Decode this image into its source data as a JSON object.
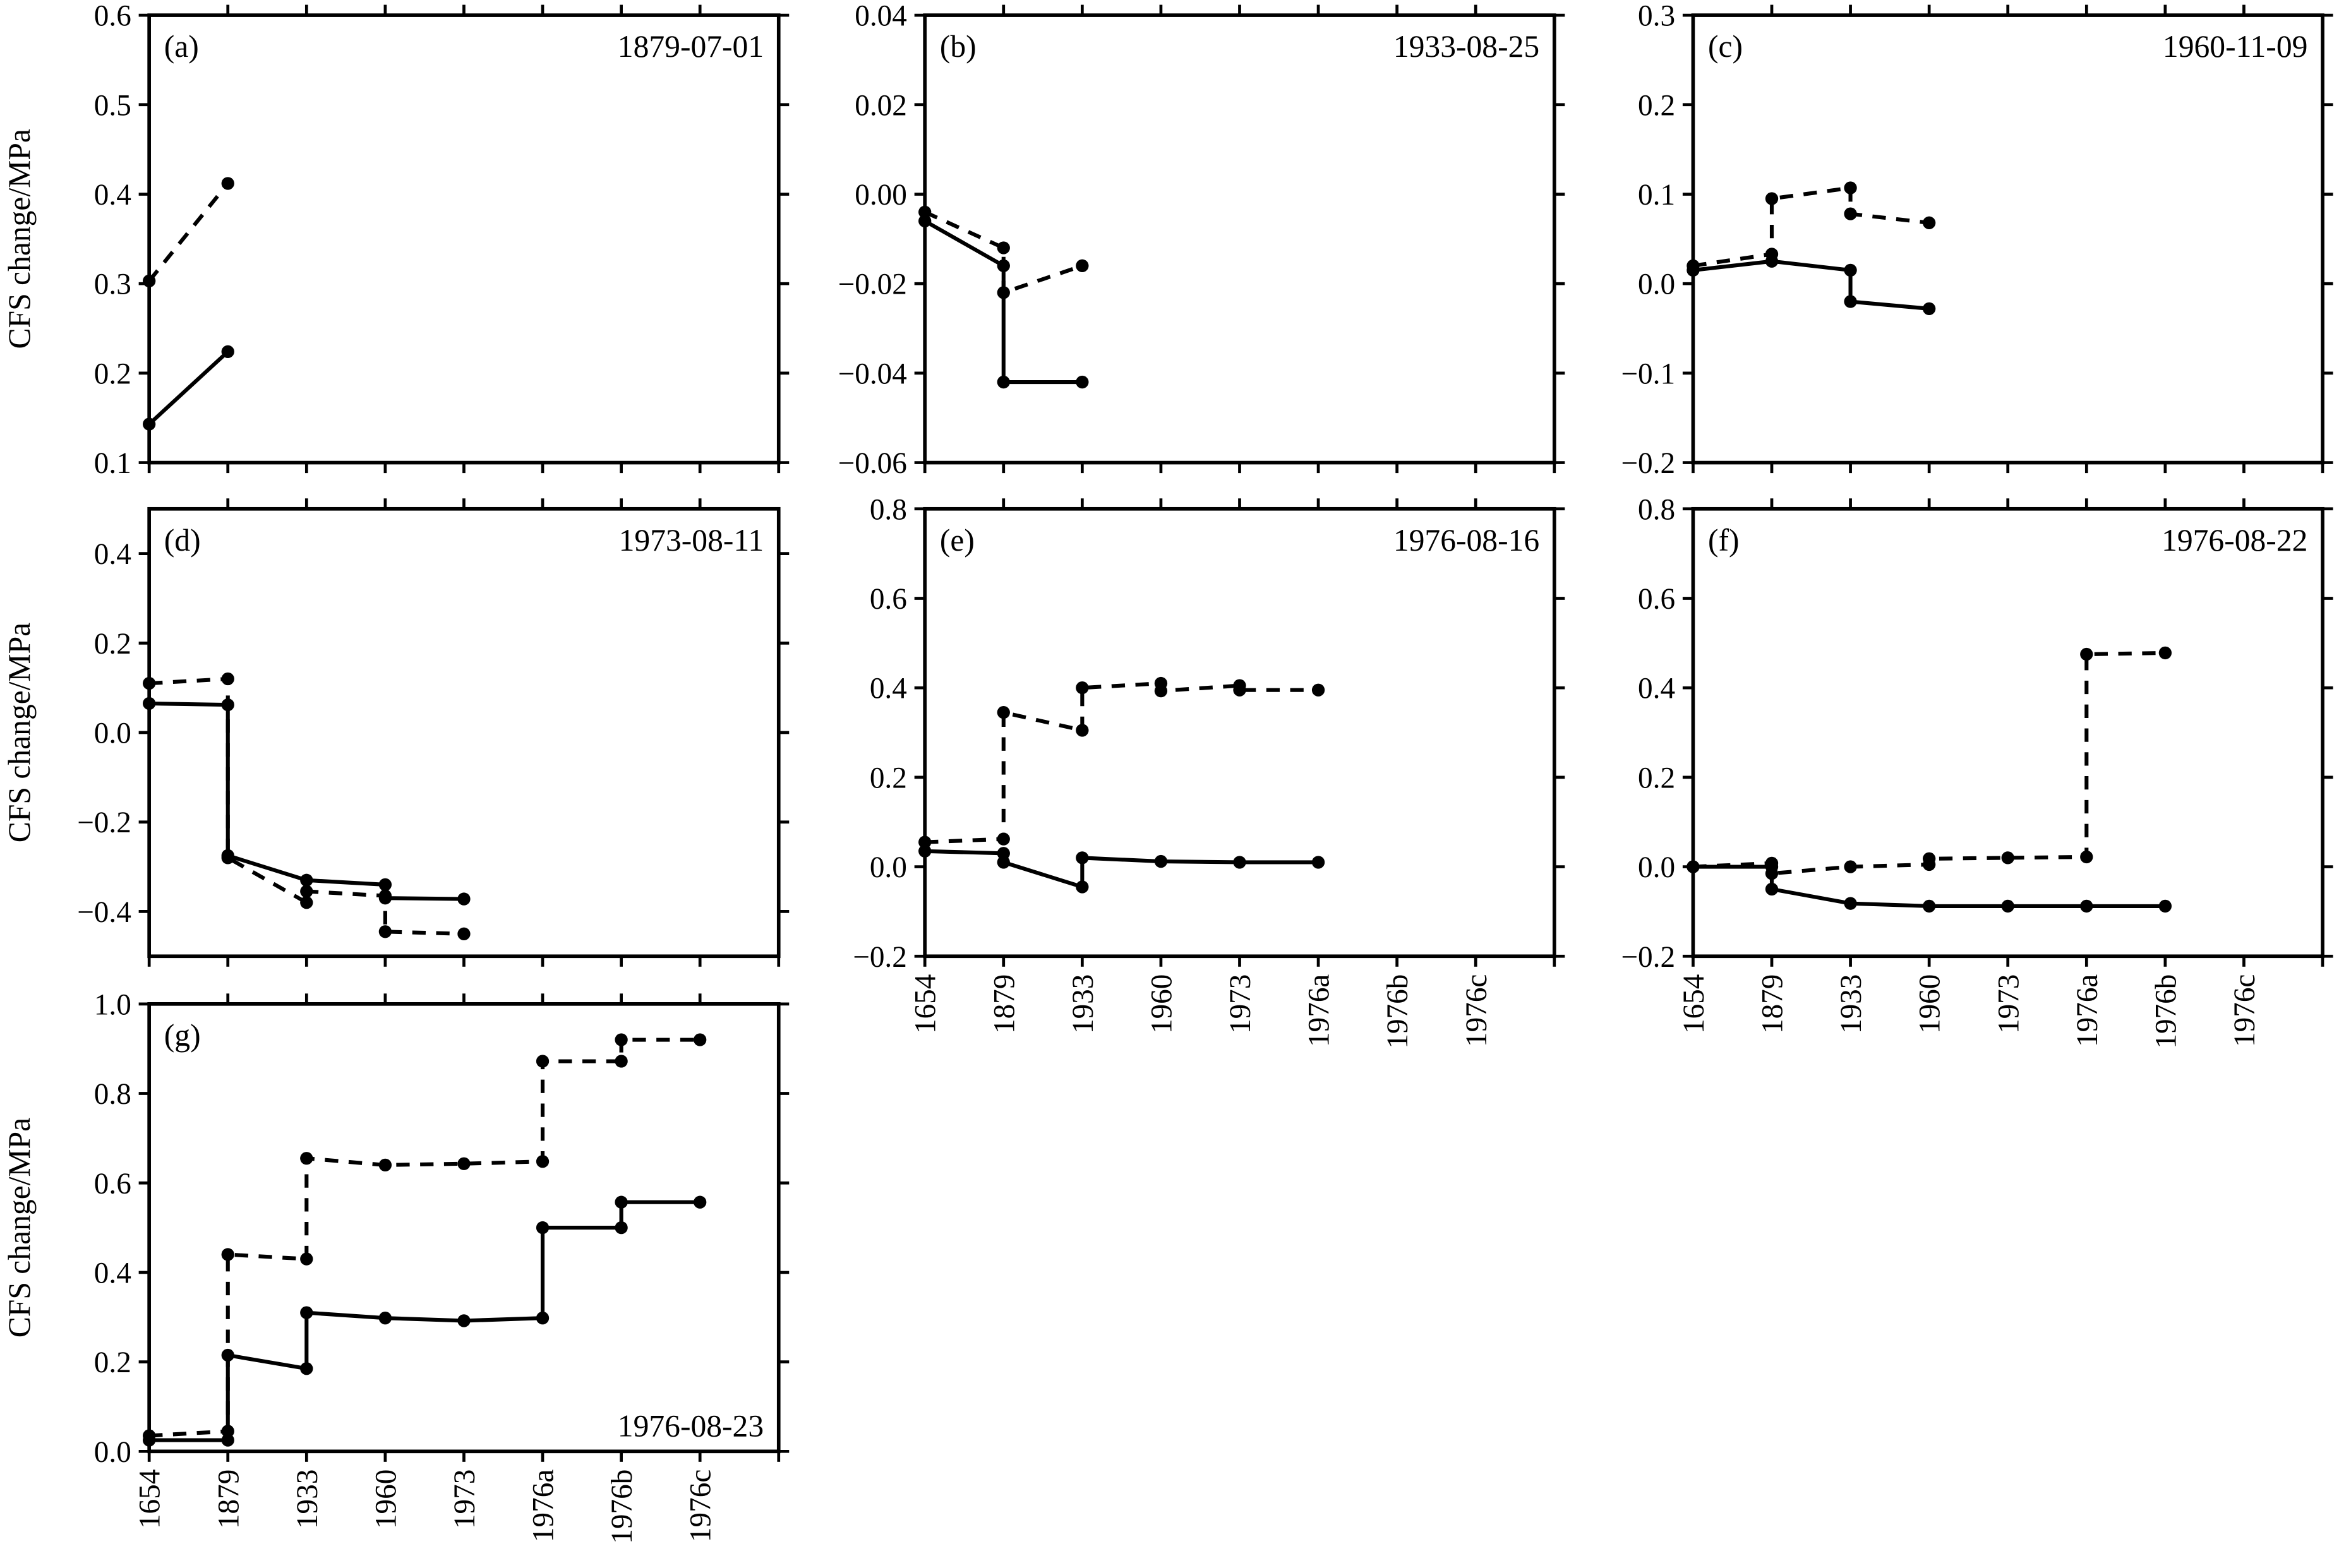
{
  "chart_data": [
    {
      "id": "a",
      "type": "line",
      "panel_label": "(a)",
      "date": "1879-07-01",
      "ylabel": "CFS change/MPa",
      "ylim": [
        0.1,
        0.6
      ],
      "yticks": [
        0.1,
        0.2,
        0.3,
        0.4,
        0.5,
        0.6
      ],
      "ytick_labels": [
        "0.1",
        "0.2",
        "0.3",
        "0.4",
        "0.5",
        "0.6"
      ],
      "series": [
        {
          "name": "solid",
          "style": "solid",
          "points": [
            [
              0,
              0.143
            ],
            [
              1,
              0.224
            ]
          ]
        },
        {
          "name": "dashed",
          "style": "dashed",
          "points": [
            [
              0,
              0.303
            ],
            [
              1,
              0.412
            ]
          ]
        }
      ]
    },
    {
      "id": "b",
      "type": "line",
      "panel_label": "(b)",
      "date": "1933-08-25",
      "ylabel": "",
      "ylim": [
        -0.06,
        0.04
      ],
      "yticks": [
        -0.06,
        -0.04,
        -0.02,
        0,
        0.02,
        0.04
      ],
      "ytick_labels": [
        "−0.06",
        "−0.04",
        "−0.02",
        "0.00",
        "0.02",
        "0.04"
      ],
      "series": [
        {
          "name": "solid",
          "style": "solid",
          "points": [
            [
              0,
              -0.006
            ],
            [
              1,
              -0.016
            ],
            [
              1,
              -0.042
            ],
            [
              2,
              -0.042
            ]
          ]
        },
        {
          "name": "dashed",
          "style": "dashed",
          "points": [
            [
              0,
              -0.004
            ],
            [
              1,
              -0.012
            ],
            [
              1,
              -0.022
            ],
            [
              2,
              -0.016
            ]
          ]
        }
      ]
    },
    {
      "id": "c",
      "type": "line",
      "panel_label": "(c)",
      "date": "1960-11-09",
      "ylabel": "",
      "ylim": [
        -0.2,
        0.3
      ],
      "yticks": [
        -0.2,
        -0.1,
        0,
        0.1,
        0.2,
        0.3
      ],
      "ytick_labels": [
        "−0.2",
        "−0.1",
        "0.0",
        "0.1",
        "0.2",
        "0.3"
      ],
      "series": [
        {
          "name": "solid",
          "style": "solid",
          "points": [
            [
              0,
              0.015
            ],
            [
              1,
              0.025
            ],
            [
              2,
              0.015
            ],
            [
              2,
              -0.02
            ],
            [
              3,
              -0.028
            ]
          ]
        },
        {
          "name": "dashed",
          "style": "dashed",
          "points": [
            [
              0,
              0.02
            ],
            [
              1,
              0.033
            ],
            [
              1,
              0.095
            ],
            [
              2,
              0.107
            ],
            [
              2,
              0.078
            ],
            [
              3,
              0.068
            ]
          ]
        }
      ]
    },
    {
      "id": "d",
      "type": "line",
      "panel_label": "(d)",
      "date": "1973-08-11",
      "ylabel": "CFS change/MPa",
      "ylim": [
        -0.5,
        0.5
      ],
      "yticks": [
        -0.4,
        -0.2,
        0,
        0.2,
        0.4
      ],
      "ytick_labels": [
        "−0.4",
        "−0.2",
        "0.0",
        "0.2",
        "0.4"
      ],
      "series": [
        {
          "name": "solid",
          "style": "solid",
          "points": [
            [
              0,
              0.065
            ],
            [
              1,
              0.062
            ],
            [
              1,
              -0.275
            ],
            [
              2,
              -0.33
            ],
            [
              3,
              -0.34
            ],
            [
              3,
              -0.37
            ],
            [
              4,
              -0.372
            ]
          ]
        },
        {
          "name": "dashed",
          "style": "dashed",
          "points": [
            [
              0,
              0.11
            ],
            [
              1,
              0.12
            ],
            [
              1,
              -0.28
            ],
            [
              2,
              -0.38
            ],
            [
              2,
              -0.355
            ],
            [
              3,
              -0.365
            ],
            [
              3,
              -0.445
            ],
            [
              4,
              -0.45
            ]
          ]
        }
      ]
    },
    {
      "id": "e",
      "type": "line",
      "panel_label": "(e)",
      "date": "1976-08-16",
      "ylabel": "",
      "ylim": [
        -0.2,
        0.8
      ],
      "yticks": [
        -0.2,
        0,
        0.2,
        0.4,
        0.6,
        0.8
      ],
      "ytick_labels": [
        "−0.2",
        "0.0",
        "0.2",
        "0.4",
        "0.6",
        "0.8"
      ],
      "series": [
        {
          "name": "solid",
          "style": "solid",
          "points": [
            [
              0,
              0.035
            ],
            [
              1,
              0.03
            ],
            [
              1,
              0.01
            ],
            [
              2,
              -0.045
            ],
            [
              2,
              0.02
            ],
            [
              3,
              0.012
            ],
            [
              4,
              0.01
            ],
            [
              5,
              0.01
            ]
          ]
        },
        {
          "name": "dashed",
          "style": "dashed",
          "points": [
            [
              0,
              0.055
            ],
            [
              1,
              0.062
            ],
            [
              1,
              0.345
            ],
            [
              2,
              0.305
            ],
            [
              2,
              0.4
            ],
            [
              3,
              0.41
            ],
            [
              3,
              0.393
            ],
            [
              4,
              0.405
            ],
            [
              4,
              0.395
            ],
            [
              5,
              0.395
            ]
          ]
        }
      ]
    },
    {
      "id": "f",
      "type": "line",
      "panel_label": "(f)",
      "date": "1976-08-22",
      "ylabel": "",
      "ylim": [
        -0.2,
        0.8
      ],
      "yticks": [
        -0.2,
        0,
        0.2,
        0.4,
        0.6,
        0.8
      ],
      "ytick_labels": [
        "−0.2",
        "0.0",
        "0.2",
        "0.4",
        "0.6",
        "0.8"
      ],
      "series": [
        {
          "name": "solid",
          "style": "solid",
          "points": [
            [
              0,
              0.0
            ],
            [
              1,
              0.0
            ],
            [
              1,
              -0.05
            ],
            [
              2,
              -0.082
            ],
            [
              3,
              -0.088
            ],
            [
              4,
              -0.088
            ],
            [
              5,
              -0.088
            ],
            [
              6,
              -0.088
            ]
          ]
        },
        {
          "name": "dashed",
          "style": "dashed",
          "points": [
            [
              0,
              0.0
            ],
            [
              1,
              0.008
            ],
            [
              1,
              -0.015
            ],
            [
              2,
              0.0
            ],
            [
              3,
              0.005
            ],
            [
              3,
              0.018
            ],
            [
              4,
              0.02
            ],
            [
              5,
              0.022
            ],
            [
              5,
              0.475
            ],
            [
              6,
              0.478
            ]
          ]
        }
      ]
    },
    {
      "id": "g",
      "type": "line",
      "panel_label": "(g)",
      "date": "1976-08-23",
      "ylabel": "CFS change/MPa",
      "ylim": [
        0,
        1.0
      ],
      "yticks": [
        0,
        0.2,
        0.4,
        0.6,
        0.8,
        1.0
      ],
      "ytick_labels": [
        "0.0",
        "0.2",
        "0.4",
        "0.6",
        "0.8",
        "1.0"
      ],
      "series": [
        {
          "name": "solid",
          "style": "solid",
          "points": [
            [
              0,
              0.025
            ],
            [
              1,
              0.025
            ],
            [
              1,
              0.215
            ],
            [
              2,
              0.185
            ],
            [
              2,
              0.31
            ],
            [
              3,
              0.298
            ],
            [
              4,
              0.292
            ],
            [
              5,
              0.298
            ],
            [
              5,
              0.5
            ],
            [
              6,
              0.5
            ],
            [
              6,
              0.557
            ],
            [
              7,
              0.557
            ]
          ]
        },
        {
          "name": "dashed",
          "style": "dashed",
          "points": [
            [
              0,
              0.035
            ],
            [
              1,
              0.045
            ],
            [
              1,
              0.44
            ],
            [
              2,
              0.43
            ],
            [
              2,
              0.655
            ],
            [
              3,
              0.64
            ],
            [
              4,
              0.643
            ],
            [
              5,
              0.648
            ],
            [
              5,
              0.872
            ],
            [
              6,
              0.872
            ],
            [
              6,
              0.92
            ],
            [
              7,
              0.92
            ]
          ]
        }
      ]
    }
  ],
  "x_categories": [
    "1654",
    "1879",
    "1933",
    "1960",
    "1973",
    "1976a",
    "1976b",
    "1976c"
  ],
  "x_labeled_panels": [
    "e",
    "f",
    "g"
  ],
  "colors": {
    "line": "#000000"
  }
}
